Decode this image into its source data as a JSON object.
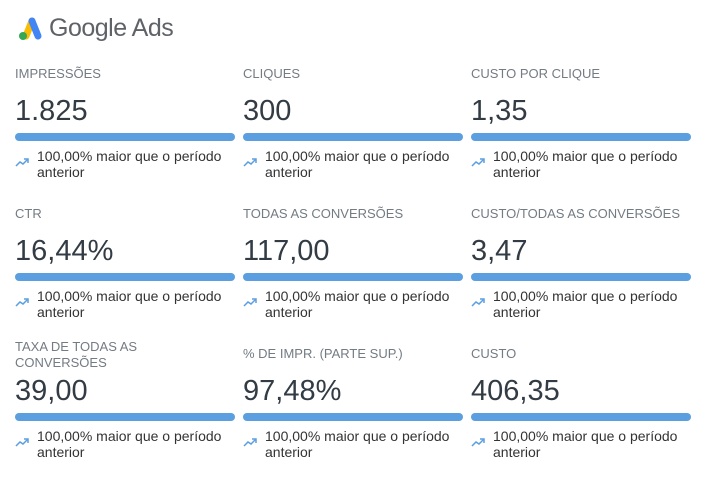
{
  "header": {
    "title": "Google Ads",
    "accent": "#5b9fe0"
  },
  "metrics": [
    {
      "label": "IMPRESSÕES",
      "value": "1.825",
      "trend": "100,00% maior que o período anterior"
    },
    {
      "label": "CLIQUES",
      "value": "300",
      "trend": "100,00% maior que o período anterior"
    },
    {
      "label": "CUSTO POR CLIQUE",
      "value": "1,35",
      "trend": "100,00% maior que o período anterior"
    },
    {
      "label": "CTR",
      "value": "16,44%",
      "trend": "100,00% maior que o período anterior"
    },
    {
      "label": "TODAS AS CONVERSÕES",
      "value": "117,00",
      "trend": "100,00% maior que o período anterior"
    },
    {
      "label": "CUSTO/TODAS AS CONVERSÕES",
      "value": "3,47",
      "trend": "100,00% maior que o período anterior"
    },
    {
      "label": "TAXA DE TODAS AS CONVERSÕES",
      "value": "39,00",
      "trend": "100,00% maior que o período anterior"
    },
    {
      "label": "% DE IMPR. (PARTE SUP.)",
      "value": "97,48%",
      "trend": "100,00% maior que o período anterior"
    },
    {
      "label": "CUSTO",
      "value": "406,35",
      "trend": "100,00% maior que o período anterior"
    }
  ]
}
